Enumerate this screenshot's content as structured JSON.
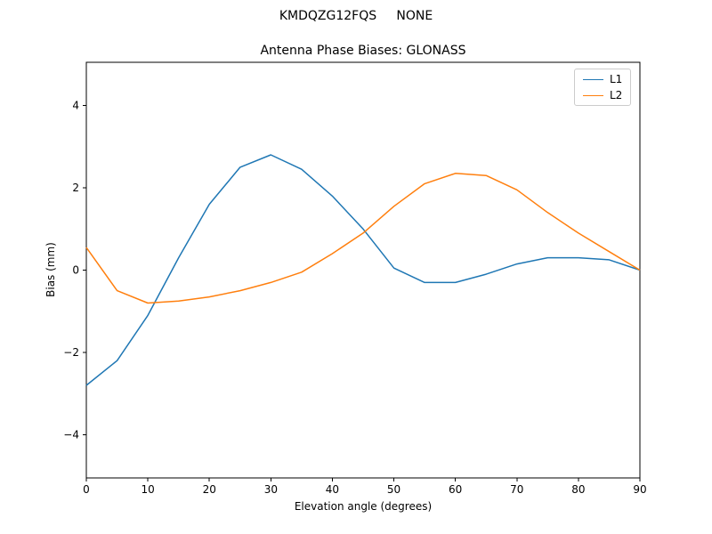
{
  "figure": {
    "suptitle": "KMDQZG12FQS     NONE"
  },
  "chart_data": {
    "type": "line",
    "title": "Antenna Phase Biases: GLONASS",
    "xlabel": "Elevation angle (degrees)",
    "ylabel": "Bias (mm)",
    "xlim": [
      0,
      90
    ],
    "ylim": [
      -5.05,
      5.05
    ],
    "xticks": [
      0,
      10,
      20,
      30,
      40,
      50,
      60,
      70,
      80,
      90
    ],
    "yticks": [
      -4,
      -2,
      0,
      2,
      4
    ],
    "grid": false,
    "legend_position": "upper right",
    "x": [
      0,
      5,
      10,
      15,
      20,
      25,
      30,
      35,
      40,
      45,
      50,
      55,
      60,
      65,
      70,
      75,
      80,
      85,
      90
    ],
    "series": [
      {
        "name": "L1",
        "color": "#1f77b4",
        "values": [
          -2.8,
          -2.2,
          -1.1,
          0.3,
          1.6,
          2.5,
          2.8,
          2.45,
          1.8,
          1.0,
          0.05,
          -0.3,
          -0.3,
          -0.1,
          0.15,
          0.3,
          0.3,
          0.25,
          0.0
        ]
      },
      {
        "name": "L2",
        "color": "#ff7f0e",
        "values": [
          0.55,
          -0.5,
          -0.8,
          -0.75,
          -0.65,
          -0.5,
          -0.3,
          -0.05,
          0.4,
          0.9,
          1.55,
          2.1,
          2.35,
          2.3,
          1.95,
          1.4,
          0.9,
          0.45,
          0.0
        ]
      }
    ]
  }
}
